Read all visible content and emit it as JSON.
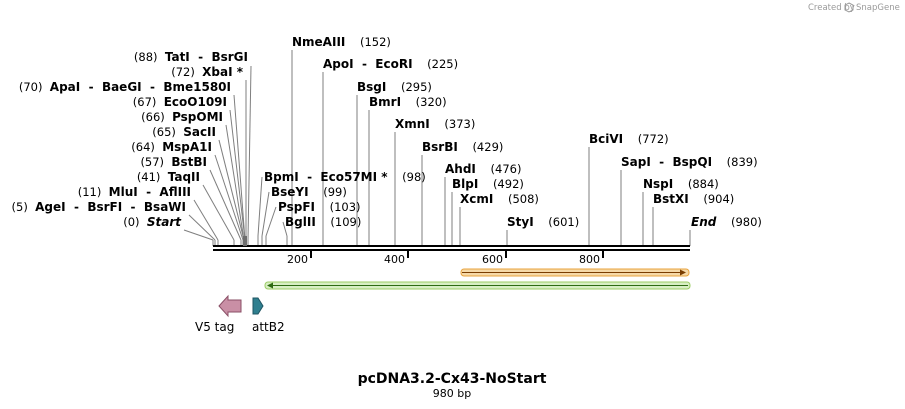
{
  "credit": {
    "prefix": "Created by",
    "brand": "SnapGene"
  },
  "sequence": {
    "name": "pcDNA3.2-Cx43-NoStart",
    "length_label": "980 bp",
    "length": 980
  },
  "ruler_ticks": [
    "200",
    "400",
    "600",
    "800"
  ],
  "sites_left": [
    {
      "pos": "(88)",
      "names": [
        "TatI",
        "BsrGI"
      ]
    },
    {
      "pos": "(72)",
      "names": [
        "XbaI *"
      ]
    },
    {
      "pos": "(70)",
      "names": [
        "ApaI",
        "BaeGI",
        "Bme1580I"
      ]
    },
    {
      "pos": "(67)",
      "names": [
        "EcoO109I"
      ]
    },
    {
      "pos": "(66)",
      "names": [
        "PspOMI"
      ]
    },
    {
      "pos": "(65)",
      "names": [
        "SacII"
      ]
    },
    {
      "pos": "(64)",
      "names": [
        "MspA1I"
      ]
    },
    {
      "pos": "(57)",
      "names": [
        "BstBI"
      ]
    },
    {
      "pos": "(41)",
      "names": [
        "TaqII"
      ]
    },
    {
      "pos": "(11)",
      "names": [
        "MluI",
        "AflIII"
      ]
    },
    {
      "pos": "(5)",
      "names": [
        "AgeI",
        "BsrFI",
        "BsaWI"
      ]
    },
    {
      "pos": "(0)",
      "names": [
        "Start"
      ],
      "italic": true
    }
  ],
  "sites_right": [
    {
      "names": [
        "NmeAIII"
      ],
      "pos": "(152)"
    },
    {
      "names": [
        "ApoI",
        "EcoRI"
      ],
      "pos": "(225)"
    },
    {
      "names": [
        "BsgI"
      ],
      "pos": "(295)"
    },
    {
      "names": [
        "BmrI"
      ],
      "pos": "(320)"
    },
    {
      "names": [
        "XmnI"
      ],
      "pos": "(373)"
    },
    {
      "names": [
        "BsrBI"
      ],
      "pos": "(429)"
    },
    {
      "names": [
        "AhdI"
      ],
      "pos": "(476)"
    },
    {
      "names": [
        "BlpI"
      ],
      "pos": "(492)"
    },
    {
      "names": [
        "XcmI"
      ],
      "pos": "(508)"
    },
    {
      "names": [
        "StyI"
      ],
      "pos": "(601)"
    },
    {
      "names": [
        "BciVI"
      ],
      "pos": "(772)"
    },
    {
      "names": [
        "SapI",
        "BspQI"
      ],
      "pos": "(839)"
    },
    {
      "names": [
        "NspI"
      ],
      "pos": "(884)"
    },
    {
      "names": [
        "BstXI"
      ],
      "pos": "(904)"
    },
    {
      "names": [
        "End"
      ],
      "pos": "(980)",
      "italic": true
    },
    {
      "names": [
        "BpmI",
        "Eco57MI *"
      ],
      "pos": "(98)"
    },
    {
      "names": [
        "BseYI"
      ],
      "pos": "(99)"
    },
    {
      "names": [
        "PspFI"
      ],
      "pos": "(103)"
    },
    {
      "names": [
        "BglII"
      ],
      "pos": "(109)"
    }
  ],
  "features": [
    {
      "label": "V5 tag"
    },
    {
      "label": "attB2"
    }
  ],
  "colors": {
    "orange_orf": "#e8a33d",
    "green_orf": "#9ccc65",
    "v5_tag": "#c98fa5",
    "attb2": "#2f7f8f",
    "backbone": "#000000",
    "leader_line": "#7f7f7f"
  }
}
